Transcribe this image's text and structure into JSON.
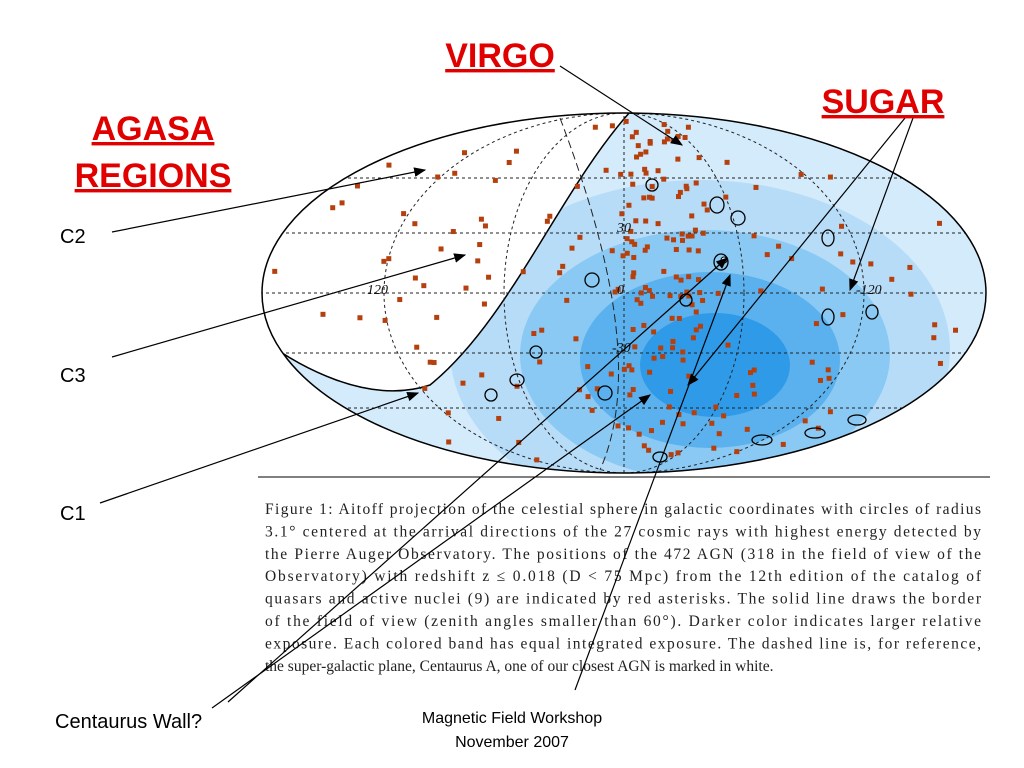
{
  "labels": {
    "virgo": "VIRGO",
    "sugar": "SUGAR",
    "agasa": [
      "AGASA",
      "REGIONS"
    ],
    "c2": "C2",
    "c3": "C3",
    "c1": "C1",
    "centaurus": "Centaurus Wall?"
  },
  "figure": {
    "axis_labels": [
      "30",
      "0",
      "120",
      "-30",
      "-120"
    ],
    "caption_lines": [
      "Figure 1: Aitoff projection of the celestial sphere in galactic coordinates with circles of radius",
      "3.1° centered at the arrival directions of the 27 cosmic rays with highest energy detected by",
      "the Pierre Auger Observatory. The positions of the 472 AGN (318 in the field of view of the",
      "Observatory) with redshift z ≤ 0.018 (D < 75 Mpc) from the 12th edition of the catalog of",
      "quasars and active nuclei (9) are indicated by red asterisks. The solid line draws the border",
      "of the field of view (zenith angles smaller than 60°). Darker color indicates larger relative",
      "exposure. Each colored band has equal integrated exposure. The dashed line is, for reference,",
      "the super-galactic plane, Centaurus A, one of our closest AGN is marked in white."
    ]
  },
  "footer": [
    "Magnetic Field Workshop",
    "November 2007"
  ]
}
